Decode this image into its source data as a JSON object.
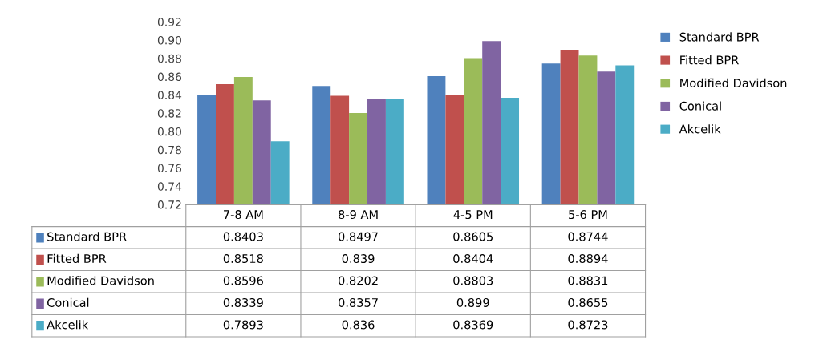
{
  "chart_data": {
    "type": "bar",
    "categories": [
      "7-8 AM",
      "8-9 AM",
      "4-5 PM",
      "5-6 PM"
    ],
    "series": [
      {
        "name": "Standard BPR",
        "color": "#4f81bd",
        "values": [
          0.8403,
          0.8497,
          0.8605,
          0.8744
        ]
      },
      {
        "name": "Fitted BPR",
        "color": "#c0504d",
        "values": [
          0.8518,
          0.839,
          0.8404,
          0.8894
        ]
      },
      {
        "name": "Modified Davidson",
        "color": "#9bbb59",
        "values": [
          0.8596,
          0.8202,
          0.8803,
          0.8831
        ]
      },
      {
        "name": "Conical",
        "color": "#8064a2",
        "values": [
          0.8339,
          0.8357,
          0.899,
          0.8655
        ]
      },
      {
        "name": "Akcelik",
        "color": "#4bacc6",
        "values": [
          0.7893,
          0.836,
          0.8369,
          0.8723
        ]
      }
    ],
    "ylim": [
      0.72,
      0.92
    ],
    "yticks": [
      {
        "value": 0.72,
        "label": "0.72"
      },
      {
        "value": 0.74,
        "label": "0.74"
      },
      {
        "value": 0.76,
        "label": "0.76"
      },
      {
        "value": 0.78,
        "label": "0.78"
      },
      {
        "value": 0.8,
        "label": "0.80"
      },
      {
        "value": 0.82,
        "label": "0.82"
      },
      {
        "value": 0.84,
        "label": "0.84"
      },
      {
        "value": 0.86,
        "label": "0.86"
      },
      {
        "value": 0.88,
        "label": "0.88"
      },
      {
        "value": 0.9,
        "label": "0.90"
      },
      {
        "value": 0.92,
        "label": "0.92"
      }
    ],
    "legend": "right",
    "data_labels": true
  }
}
